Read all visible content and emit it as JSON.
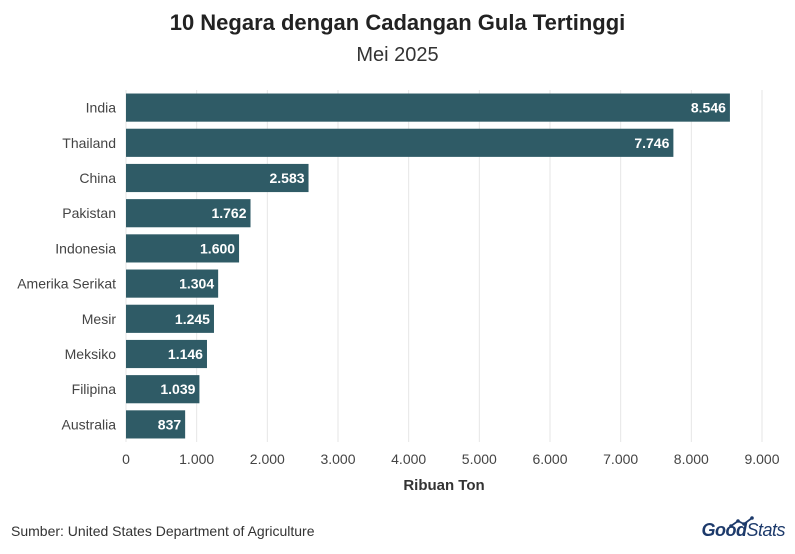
{
  "header": {
    "title": "10 Negara dengan Cadangan Gula Tertinggi",
    "subtitle": "Mei 2025"
  },
  "footer": {
    "source": "Sumber: United States Department of Agriculture",
    "brand_part1": "Good",
    "brand_part2": "Stats"
  },
  "colors": {
    "bar": "#2f5b66",
    "grid": "#e6e6e6",
    "label": "#ffffff"
  },
  "chart_data": {
    "type": "bar",
    "orientation": "horizontal",
    "categories": [
      "India",
      "Thailand",
      "China",
      "Pakistan",
      "Indonesia",
      "Amerika Serikat",
      "Mesir",
      "Meksiko",
      "Filipina",
      "Australia"
    ],
    "values": [
      8546,
      7746,
      2583,
      1762,
      1600,
      1304,
      1245,
      1146,
      1039,
      837
    ],
    "value_labels": [
      "8.546",
      "7.746",
      "2.583",
      "1.762",
      "1.600",
      "1.304",
      "1.245",
      "1.146",
      "1.039",
      "837"
    ],
    "title": "10 Negara dengan Cadangan Gula Tertinggi",
    "subtitle": "Mei 2025",
    "xlabel": "Ribuan Ton",
    "ylabel": "",
    "xlim": [
      0,
      9000
    ],
    "xticks": [
      0,
      1000,
      2000,
      3000,
      4000,
      5000,
      6000,
      7000,
      8000,
      9000
    ],
    "xtick_labels": [
      "0",
      "1.000",
      "2.000",
      "3.000",
      "4.000",
      "5.000",
      "6.000",
      "7.000",
      "8.000",
      "9.000"
    ],
    "grid": true,
    "legend": "none"
  }
}
